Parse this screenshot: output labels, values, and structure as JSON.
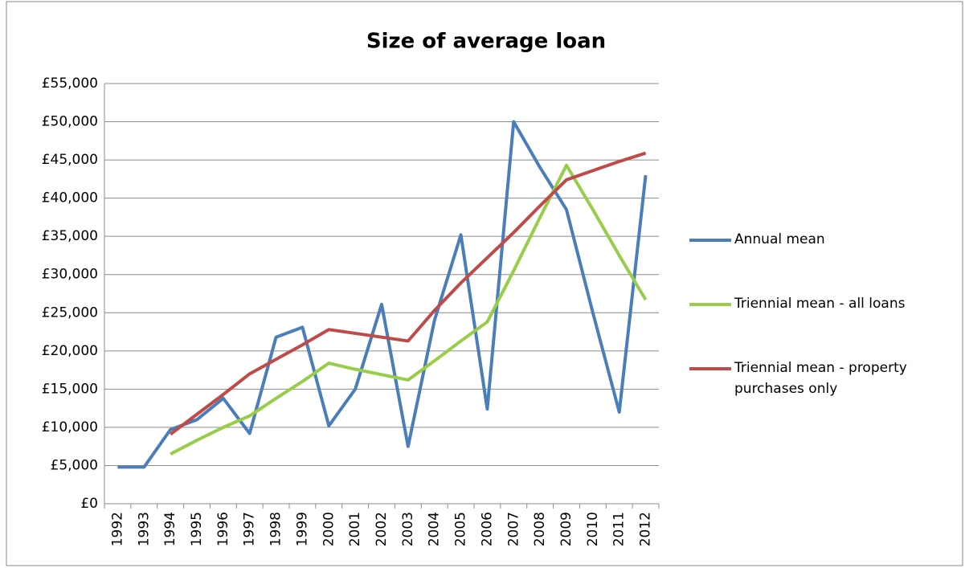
{
  "chart_data": {
    "type": "line",
    "title": "Size of average loan",
    "categories": [
      "1992",
      "1993",
      "1994",
      "1995",
      "1996",
      "1997",
      "1998",
      "1999",
      "2000",
      "2001",
      "2002",
      "2003",
      "2004",
      "2005",
      "2006",
      "2007",
      "2008",
      "2009",
      "2010",
      "2011",
      "2012"
    ],
    "series": [
      {
        "name": "Annual mean",
        "color": "#4a7ebb",
        "values": [
          4800,
          4800,
          9700,
          11000,
          13800,
          9200,
          21800,
          23100,
          10200,
          15000,
          26100,
          7500,
          24000,
          35200,
          12400,
          50000,
          44000,
          38500,
          25000,
          12000,
          43000
        ]
      },
      {
        "name": "Triennial mean - all loans",
        "color": "#98cd4a",
        "values": [
          null,
          null,
          6500,
          8300,
          10000,
          11500,
          13800,
          16000,
          18400,
          17600,
          16900,
          16200,
          18700,
          21300,
          23800,
          30500,
          37500,
          44300,
          38500,
          32500,
          26700
        ]
      },
      {
        "name": "Triennial mean - property purchases only",
        "color": "#be4b48",
        "values": [
          null,
          null,
          9100,
          11700,
          14300,
          17000,
          18900,
          20800,
          22800,
          22300,
          21800,
          21300,
          25300,
          28900,
          32200,
          35500,
          39000,
          42400,
          43600,
          44800,
          45900
        ]
      }
    ],
    "ylim": [
      0,
      55000
    ],
    "yticks": [
      {
        "value": 0,
        "label": "£0"
      },
      {
        "value": 5000,
        "label": "£5,000"
      },
      {
        "value": 10000,
        "label": "£10,000"
      },
      {
        "value": 15000,
        "label": "£15,000"
      },
      {
        "value": 20000,
        "label": "£20,000"
      },
      {
        "value": 25000,
        "label": "£25,000"
      },
      {
        "value": 30000,
        "label": "£30,000"
      },
      {
        "value": 35000,
        "label": "£35,000"
      },
      {
        "value": 40000,
        "label": "£40,000"
      },
      {
        "value": 45000,
        "label": "£45,000"
      },
      {
        "value": 50000,
        "label": "£50,000"
      },
      {
        "value": 55000,
        "label": "£55,000"
      }
    ],
    "grid": true,
    "legend": "right"
  }
}
